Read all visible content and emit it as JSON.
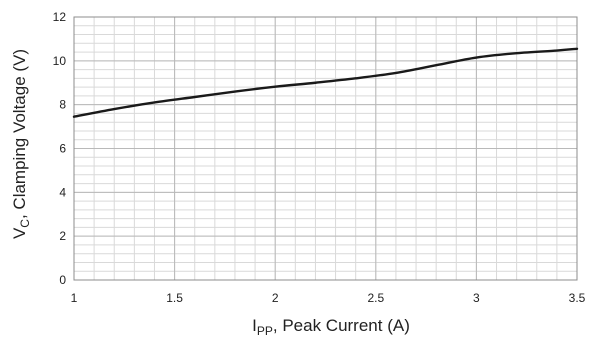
{
  "chart_data": {
    "type": "line",
    "title": "",
    "xlabel": {
      "main": "I",
      "subscript": "PP",
      "rest": ", Peak Current (A)"
    },
    "ylabel": {
      "main": "V",
      "subscript": "C",
      "rest": ", Clamping Voltage (V)"
    },
    "xlim": [
      1,
      3.5
    ],
    "ylim": [
      0,
      12
    ],
    "x_ticks": [
      1,
      1.5,
      2,
      2.5,
      3,
      3.5
    ],
    "x_tick_labels": [
      "1",
      "1.5",
      "2",
      "2.5",
      "3",
      "3.5"
    ],
    "y_ticks": [
      0,
      2,
      4,
      6,
      8,
      10,
      12
    ],
    "y_tick_labels": [
      "0",
      "2",
      "4",
      "6",
      "8",
      "10",
      "12"
    ],
    "grid": true,
    "minor_grid": {
      "x_step": 0.1,
      "y_step": 0.4
    },
    "colors": {
      "line": "#1a1a1a",
      "major_grid": "#b9b9b9",
      "minor_grid": "#d9d9d9",
      "frame": "#8c8c8c"
    },
    "series": [
      {
        "x": [
          1.0,
          1.2,
          1.4,
          1.6,
          1.8,
          2.0,
          2.2,
          2.4,
          2.6,
          2.8,
          3.0,
          3.2,
          3.4,
          3.5
        ],
        "y": [
          7.45,
          7.8,
          8.1,
          8.35,
          8.6,
          8.82,
          9.0,
          9.2,
          9.45,
          9.8,
          10.15,
          10.35,
          10.47,
          10.55
        ]
      }
    ]
  }
}
